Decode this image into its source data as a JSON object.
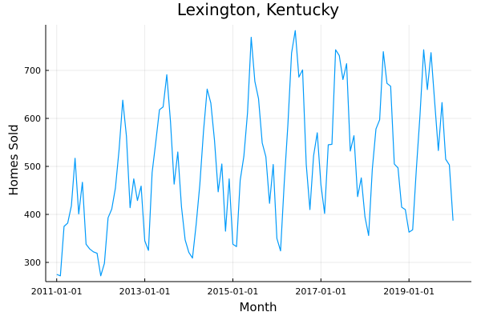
{
  "chart_data": {
    "type": "line",
    "title": "Lexington, Kentucky",
    "xlabel": "Month",
    "ylabel": "Homes Sold",
    "x_start": "2011-01",
    "x_frequency": "monthly",
    "x_ticks": [
      "2011-01-01",
      "2013-01-01",
      "2015-01-01",
      "2017-01-01",
      "2019-01-01"
    ],
    "y_ticks": [
      300,
      400,
      500,
      600,
      700
    ],
    "ylim": [
      260,
      795
    ],
    "xlim": [
      "2010-10",
      "2020-06"
    ],
    "grid": true,
    "legend": "none",
    "series": [
      {
        "color": "#009AFA",
        "values": [
          275,
          272,
          375,
          382,
          418,
          517,
          401,
          467,
          338,
          328,
          322,
          319,
          272,
          298,
          393,
          411,
          455,
          535,
          638,
          563,
          414,
          474,
          429,
          459,
          345,
          325,
          487,
          551,
          618,
          624,
          691,
          594,
          463,
          530,
          416,
          347,
          321,
          309,
          379,
          462,
          573,
          661,
          632,
          554,
          447,
          505,
          365,
          474,
          338,
          333,
          471,
          521,
          612,
          769,
          677,
          641,
          549,
          520,
          423,
          504,
          350,
          324,
          465,
          587,
          736,
          783,
          686,
          701,
          504,
          410,
          522,
          570,
          462,
          402,
          545,
          546,
          743,
          731,
          681,
          714,
          532,
          564,
          437,
          476,
          395,
          356,
          494,
          578,
          597,
          739,
          673,
          667,
          505,
          497,
          415,
          410,
          363,
          368,
          494,
          607,
          743,
          660,
          737,
          634,
          533,
          633,
          515,
          503,
          387
        ]
      }
    ]
  }
}
